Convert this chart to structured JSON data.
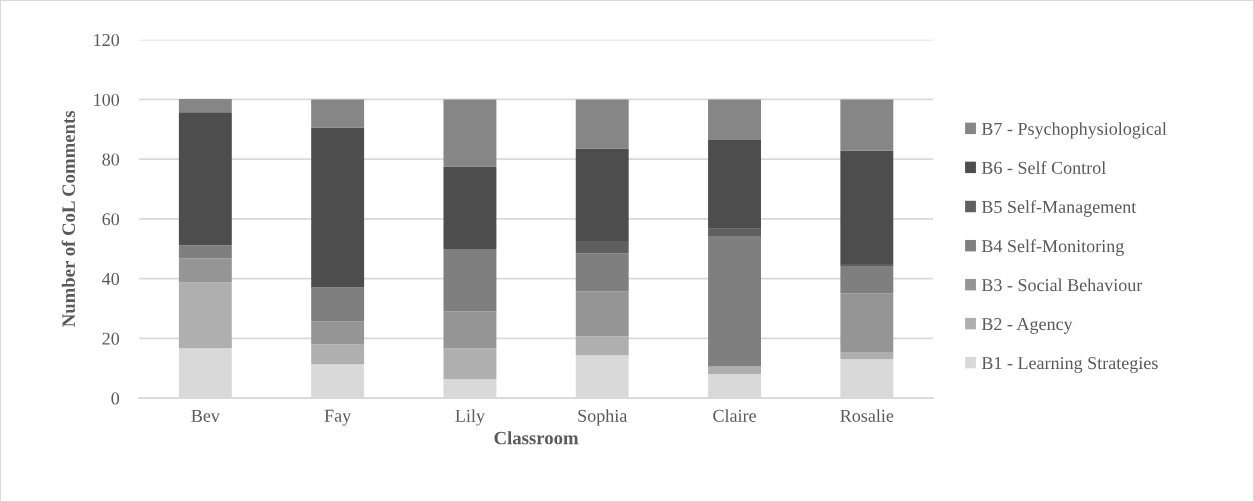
{
  "chart_data": {
    "type": "bar",
    "stacked": true,
    "xlabel": "Classroom",
    "ylabel": "Number of CoL Comments",
    "categories": [
      "Bev",
      "Fay",
      "Lily",
      "Sophia",
      "Claire",
      "Rosalie"
    ],
    "series": [
      {
        "name": "B1 - Learning Strategies",
        "color": "#d9d9d9",
        "values": [
          16.7,
          11.3,
          6.3,
          14.3,
          8.1,
          13.0
        ]
      },
      {
        "name": "B2 - Agency",
        "color": "#afafaf",
        "values": [
          22.0,
          6.7,
          10.4,
          6.4,
          2.5,
          2.4
        ]
      },
      {
        "name": "B3 - Social Behaviour",
        "color": "#959595",
        "values": [
          8.1,
          7.7,
          12.4,
          15.1,
          0,
          19.7
        ]
      },
      {
        "name": "B4 Self-Monitoring",
        "color": "#7f7f7f",
        "values": [
          4.4,
          11.3,
          20.8,
          12.7,
          43.7,
          9.1
        ]
      },
      {
        "name": "B5 Self-Management",
        "color": "#5f5f5f",
        "values": [
          0,
          0,
          0,
          4.1,
          2.4,
          0.7
        ]
      },
      {
        "name": "B6 - Self Control",
        "color": "#4d4d4d",
        "values": [
          44.5,
          53.6,
          27.6,
          31.0,
          29.7,
          37.9
        ]
      },
      {
        "name": "B7 - Psychophysiological",
        "color": "#868686",
        "values": [
          4.4,
          9.4,
          22.5,
          16.4,
          13.6,
          17.2
        ]
      }
    ],
    "ylim": [
      0,
      120
    ],
    "yticks": [
      0,
      20,
      40,
      60,
      80,
      100,
      120
    ],
    "grid": "y",
    "legend": "right"
  }
}
